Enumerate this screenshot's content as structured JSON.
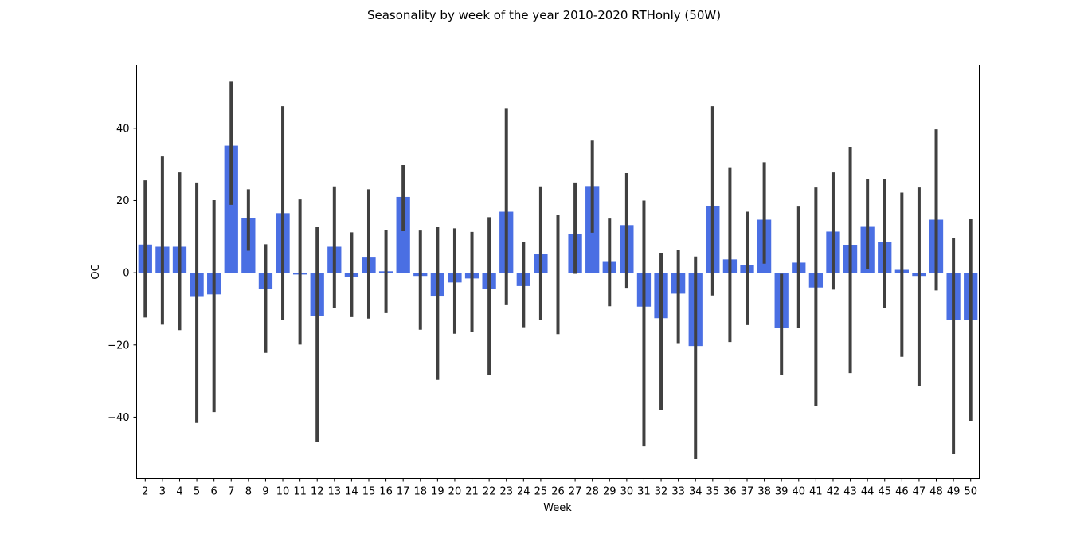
{
  "chart_data": {
    "type": "bar",
    "title": "Seasonality by week of the year 2010-2020 RTHonly (50W)",
    "xlabel": "Week",
    "ylabel": "OC",
    "ylim": [
      -57,
      57.5
    ],
    "yticks": [
      -40,
      -20,
      0,
      20,
      40
    ],
    "grid": false,
    "bar_color": "#4a6fe3",
    "errorbar_color": "#404040",
    "categories": [
      "2",
      "3",
      "4",
      "5",
      "6",
      "7",
      "8",
      "9",
      "10",
      "11",
      "12",
      "13",
      "14",
      "15",
      "16",
      "17",
      "18",
      "19",
      "20",
      "21",
      "22",
      "23",
      "24",
      "25",
      "26",
      "27",
      "28",
      "29",
      "30",
      "31",
      "32",
      "33",
      "34",
      "35",
      "36",
      "37",
      "38",
      "39",
      "40",
      "41",
      "42",
      "43",
      "44",
      "45",
      "46",
      "47",
      "48",
      "49",
      "50"
    ],
    "values": [
      7.8,
      7.2,
      7.2,
      -6.7,
      -6.0,
      35.2,
      15.1,
      -4.4,
      16.5,
      -0.5,
      -12.0,
      7.2,
      -1.1,
      4.2,
      0.4,
      21.0,
      -0.9,
      -6.6,
      -2.7,
      -1.6,
      -4.6,
      16.9,
      -3.7,
      5.1,
      0.0,
      10.7,
      24.0,
      3.0,
      13.2,
      -9.4,
      -12.6,
      -5.8,
      -20.3,
      18.5,
      3.7,
      2.1,
      14.7,
      -15.2,
      2.8,
      -4.1,
      11.4,
      7.7,
      12.7,
      8.5,
      0.8,
      -0.9,
      14.7,
      -13.0,
      -13.0
    ],
    "errors": [
      [
        -12.4,
        25.6
      ],
      [
        -14.4,
        32.2
      ],
      [
        -15.9,
        27.8
      ],
      [
        -41.6,
        25.0
      ],
      [
        -38.6,
        20.1
      ],
      [
        18.8,
        52.9
      ],
      [
        6.1,
        23.1
      ],
      [
        -22.2,
        7.9
      ],
      [
        -13.2,
        46.1
      ],
      [
        -19.9,
        20.3
      ],
      [
        -46.9,
        12.6
      ],
      [
        -9.7,
        23.9
      ],
      [
        -12.3,
        11.2
      ],
      [
        -12.7,
        23.1
      ],
      [
        -11.2,
        11.9
      ],
      [
        11.5,
        29.8
      ],
      [
        -15.8,
        11.7
      ],
      [
        -29.7,
        12.6
      ],
      [
        -16.9,
        12.3
      ],
      [
        -16.3,
        11.3
      ],
      [
        -28.2,
        15.4
      ],
      [
        -9.0,
        45.4
      ],
      [
        -15.1,
        8.6
      ],
      [
        -13.2,
        23.9
      ],
      [
        -17.0,
        15.9
      ],
      [
        -0.3,
        25.0
      ],
      [
        11.1,
        36.6
      ],
      [
        -9.3,
        15.0
      ],
      [
        -4.2,
        27.6
      ],
      [
        -48.1,
        20.0
      ],
      [
        -38.1,
        5.5
      ],
      [
        -19.5,
        6.2
      ],
      [
        -51.6,
        4.5
      ],
      [
        -6.3,
        46.1
      ],
      [
        -19.2,
        29.0
      ],
      [
        -14.5,
        16.9
      ],
      [
        2.5,
        30.6
      ],
      [
        -28.4,
        -0.3
      ],
      [
        -15.4,
        18.3
      ],
      [
        -37.0,
        23.6
      ],
      [
        -4.7,
        27.8
      ],
      [
        -27.8,
        34.9
      ],
      [
        0.9,
        25.9
      ],
      [
        -9.7,
        26.0
      ],
      [
        -23.3,
        22.2
      ],
      [
        -31.3,
        23.6
      ],
      [
        -4.9,
        39.7
      ],
      [
        -50.1,
        9.7
      ],
      [
        -41.0,
        14.8
      ]
    ]
  }
}
